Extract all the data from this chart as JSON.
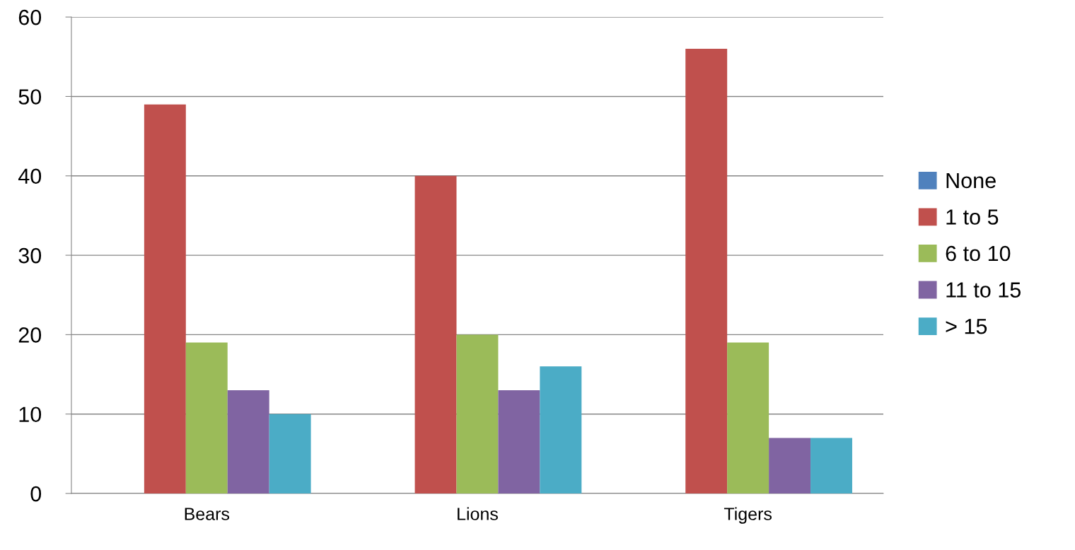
{
  "chart_data": {
    "type": "bar",
    "categories": [
      "Bears",
      "Lions",
      "Tigers"
    ],
    "series": [
      {
        "name": "None",
        "color": "#4f81bd",
        "values": [
          0,
          0,
          0
        ]
      },
      {
        "name": "1 to 5",
        "color": "#c0504d",
        "values": [
          49,
          40,
          56
        ]
      },
      {
        "name": "6 to 10",
        "color": "#9bbb59",
        "values": [
          19,
          20,
          19
        ]
      },
      {
        "name": "11 to 15",
        "color": "#8064a2",
        "values": [
          13,
          13,
          7
        ]
      },
      {
        "name": "> 15",
        "color": "#4bacc6",
        "values": [
          10,
          16,
          7
        ]
      }
    ],
    "ylim": [
      0,
      60
    ],
    "yticks": [
      0,
      10,
      20,
      30,
      40,
      50,
      60
    ],
    "grid": "y",
    "legend": "right"
  }
}
